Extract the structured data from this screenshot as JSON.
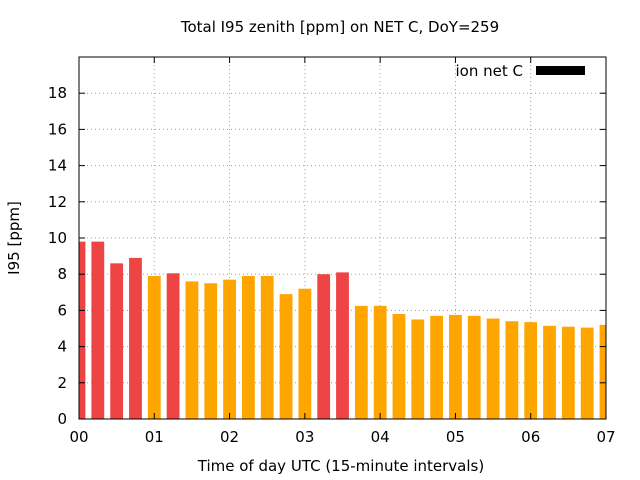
{
  "chart_data": {
    "type": "bar",
    "title": "Total I95 zenith [ppm] on NET C, DoY=259",
    "xlabel": "Time of day UTC (15-minute intervals)",
    "ylabel": "I95 [ppm]",
    "legend": {
      "label": "ion net C",
      "position": "top-right",
      "swatch_color": "#000000"
    },
    "xlim": [
      0,
      7
    ],
    "ylim": [
      0,
      20
    ],
    "x_ticks": [
      {
        "value": 0,
        "label": "00"
      },
      {
        "value": 1,
        "label": "01"
      },
      {
        "value": 2,
        "label": "02"
      },
      {
        "value": 3,
        "label": "03"
      },
      {
        "value": 4,
        "label": "04"
      },
      {
        "value": 5,
        "label": "05"
      },
      {
        "value": 6,
        "label": "06"
      },
      {
        "value": 7,
        "label": "07"
      }
    ],
    "y_ticks": [
      0,
      2,
      4,
      6,
      8,
      10,
      12,
      14,
      16,
      18
    ],
    "grid": true,
    "colors": {
      "red": "#ef4444",
      "orange": "#ffa500"
    },
    "bars": [
      {
        "x": 0.0,
        "value": 9.8,
        "color": "red"
      },
      {
        "x": 0.25,
        "value": 9.8,
        "color": "red"
      },
      {
        "x": 0.5,
        "value": 8.6,
        "color": "red"
      },
      {
        "x": 0.75,
        "value": 8.9,
        "color": "red"
      },
      {
        "x": 1.0,
        "value": 7.9,
        "color": "orange"
      },
      {
        "x": 1.25,
        "value": 8.05,
        "color": "red"
      },
      {
        "x": 1.5,
        "value": 7.6,
        "color": "orange"
      },
      {
        "x": 1.75,
        "value": 7.5,
        "color": "orange"
      },
      {
        "x": 2.0,
        "value": 7.7,
        "color": "orange"
      },
      {
        "x": 2.25,
        "value": 7.9,
        "color": "orange"
      },
      {
        "x": 2.5,
        "value": 7.9,
        "color": "orange"
      },
      {
        "x": 2.75,
        "value": 6.9,
        "color": "orange"
      },
      {
        "x": 3.0,
        "value": 7.2,
        "color": "orange"
      },
      {
        "x": 3.25,
        "value": 8.0,
        "color": "red"
      },
      {
        "x": 3.5,
        "value": 8.1,
        "color": "red"
      },
      {
        "x": 3.75,
        "value": 6.25,
        "color": "orange"
      },
      {
        "x": 4.0,
        "value": 6.25,
        "color": "orange"
      },
      {
        "x": 4.25,
        "value": 5.8,
        "color": "orange"
      },
      {
        "x": 4.5,
        "value": 5.5,
        "color": "orange"
      },
      {
        "x": 4.75,
        "value": 5.7,
        "color": "orange"
      },
      {
        "x": 5.0,
        "value": 5.75,
        "color": "orange"
      },
      {
        "x": 5.25,
        "value": 5.7,
        "color": "orange"
      },
      {
        "x": 5.5,
        "value": 5.55,
        "color": "orange"
      },
      {
        "x": 5.75,
        "value": 5.4,
        "color": "orange"
      },
      {
        "x": 6.0,
        "value": 5.35,
        "color": "orange"
      },
      {
        "x": 6.25,
        "value": 5.15,
        "color": "orange"
      },
      {
        "x": 6.5,
        "value": 5.1,
        "color": "orange"
      },
      {
        "x": 6.75,
        "value": 5.05,
        "color": "orange"
      },
      {
        "x": 7.0,
        "value": 5.2,
        "color": "orange"
      }
    ]
  }
}
